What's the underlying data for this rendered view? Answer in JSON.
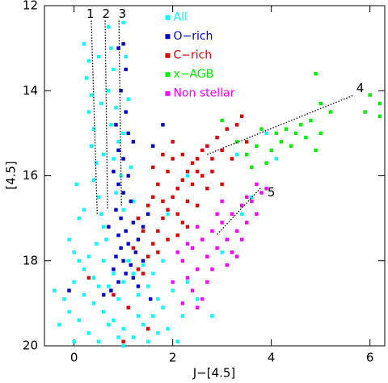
{
  "chart_data": {
    "type": "scatter",
    "xlabel": "J−[4.5]",
    "ylabel": "[4.5]",
    "xlim": [
      -0.6,
      6.3
    ],
    "ylim": [
      20,
      12
    ],
    "xticks": [
      0,
      2,
      4,
      6
    ],
    "yticks": [
      12,
      14,
      16,
      18,
      20
    ],
    "legend": "upper center",
    "series": [
      {
        "name": "All",
        "color": "#00ffff",
        "x": [
          0.2,
          0.3,
          0.25,
          0.35,
          0.3,
          0.4,
          0.35,
          0.45,
          0.4,
          0.5,
          0.55,
          0.6,
          0.7,
          0.75,
          0.8,
          0.7,
          0.85,
          0.75,
          0.9,
          0.8,
          0.95,
          0.85,
          1.0,
          0.65,
          1.0,
          1.05,
          1.1,
          1.0,
          1.15,
          1.2,
          0.5,
          0.55,
          0.6,
          0.2,
          0.1,
          0.45,
          0.3,
          1.3,
          0.0,
          0.2,
          0.4,
          0.6,
          0.8,
          1.0,
          1.2,
          1.4,
          1.6,
          1.8,
          0.1,
          0.3,
          0.5,
          0.7,
          0.9,
          1.1,
          1.3,
          1.5,
          1.7,
          1.9,
          2.0,
          0.2,
          0.4,
          0.6,
          0.8,
          1.0,
          1.2,
          1.4,
          1.6,
          0.0,
          0.9,
          1.5,
          -0.2,
          -0.4,
          -0.3,
          2.2,
          2.3,
          1.8,
          2.5,
          0.1,
          0.5,
          1.1,
          0.7,
          1.3,
          1.7,
          -0.1,
          2.1,
          1.0,
          0.05,
          -0.1,
          0.0,
          3.0,
          2.8,
          3.3,
          3.6,
          4.1,
          3.9,
          3.4,
          1.9,
          2.3
        ],
        "values": [
          12.9,
          13.3,
          13.7,
          14.1,
          14.5,
          14.9,
          15.3,
          15.7,
          16.1,
          16.5,
          16.9,
          17.2,
          12.5,
          13.0,
          13.5,
          14.0,
          14.4,
          14.8,
          15.2,
          15.6,
          16.0,
          16.4,
          16.8,
          17.5,
          12.4,
          13.2,
          14.2,
          15.0,
          15.8,
          16.6,
          13.2,
          14.3,
          15.5,
          16.8,
          17.0,
          17.6,
          17.9,
          17.0,
          18.5,
          18.8,
          19.0,
          19.2,
          19.4,
          19.6,
          19.8,
          19.5,
          19.3,
          19.1,
          19.4,
          19.7,
          19.9,
          18.6,
          18.9,
          19.1,
          18.8,
          18.6,
          18.9,
          19.6,
          18.7,
          18.2,
          18.4,
          18.0,
          18.3,
          18.5,
          18.3,
          18.1,
          18.3,
          19.9,
          19.8,
          19.9,
          18.9,
          18.7,
          19.5,
          19.3,
          18.5,
          18.0,
          18.9,
          18.0,
          18.6,
          18.0,
          19.5,
          19.3,
          19.7,
          19.2,
          19.9,
          20.0,
          16.2,
          17.5,
          17.8,
          17.8,
          19.3,
          15.5,
          16.5,
          15.6,
          15.0,
          16.9,
          16.9,
          16.0
        ]
      },
      {
        "name": "O−rich",
        "color": "#0000cc",
        "x": [
          0.9,
          1.0,
          1.05,
          0.95,
          1.05,
          0.85,
          1.1,
          0.9,
          1.0,
          0.8,
          1.1,
          0.9,
          1.0,
          1.15,
          0.85,
          0.95,
          1.2,
          1.05,
          0.9,
          1.3,
          1.1,
          0.95,
          1.25,
          0.85,
          1.0,
          1.15,
          0.8,
          1.05,
          0.9,
          1.2,
          0.75,
          1.4,
          1.5,
          1.6,
          1.8,
          1.2,
          0.6,
          1.3,
          0.7,
          1.4,
          -0.1,
          1.55
        ],
        "values": [
          13.0,
          12.9,
          13.5,
          14.0,
          14.5,
          14.8,
          15.0,
          15.4,
          15.6,
          15.9,
          16.0,
          16.2,
          16.4,
          16.6,
          16.8,
          17.0,
          17.1,
          17.3,
          17.4,
          17.5,
          17.6,
          17.7,
          17.8,
          17.9,
          18.0,
          18.1,
          18.2,
          18.3,
          18.5,
          18.4,
          18.7,
          17.2,
          16.9,
          15.3,
          14.8,
          15.2,
          18.8,
          18.6,
          17.2,
          18.0,
          18.7,
          18.9
        ]
      },
      {
        "name": "C−rich",
        "color": "#dd0000",
        "x": [
          1.4,
          1.5,
          1.6,
          1.7,
          1.8,
          1.9,
          2.0,
          2.1,
          2.2,
          2.3,
          2.4,
          2.5,
          2.6,
          2.7,
          1.6,
          1.7,
          1.8,
          1.9,
          2.0,
          2.1,
          2.2,
          2.3,
          2.4,
          2.5,
          2.6,
          2.8,
          2.9,
          3.0,
          3.1,
          3.3,
          3.5,
          3.4,
          2.0,
          1.5,
          1.3,
          1.2,
          1.7,
          1.9,
          2.1,
          2.3,
          2.5,
          2.7,
          2.8,
          3.0,
          1.4,
          1.6,
          1.8,
          0.3,
          0.8,
          1.1,
          1.5,
          1.0,
          1.3,
          2.2,
          3.2
        ],
        "values": [
          18.3,
          17.9,
          17.6,
          17.3,
          17.0,
          16.8,
          16.5,
          16.3,
          16.1,
          15.9,
          15.7,
          15.6,
          15.4,
          15.3,
          16.5,
          16.2,
          16.6,
          15.9,
          15.6,
          16.9,
          17.1,
          16.6,
          16.2,
          15.9,
          16.0,
          15.6,
          15.1,
          15.4,
          14.9,
          14.8,
          15.2,
          14.6,
          15.2,
          16.7,
          17.0,
          17.7,
          17.8,
          17.5,
          17.4,
          17.2,
          16.7,
          16.3,
          15.9,
          16.2,
          17.3,
          15.8,
          15.5,
          18.4,
          18.8,
          19.1,
          19.6,
          19.9,
          18.2,
          15.5,
          15.6
        ]
      },
      {
        "name": "x−AGB",
        "color": "#00ee00",
        "x": [
          3.3,
          3.5,
          3.6,
          3.7,
          3.8,
          3.9,
          4.0,
          4.1,
          4.2,
          4.3,
          4.4,
          4.5,
          4.7,
          4.8,
          4.9,
          5.0,
          5.0,
          5.2,
          4.9,
          5.9,
          6.0,
          6.2,
          6.2,
          3.0,
          4.6
        ],
        "values": [
          15.2,
          15.5,
          15.8,
          15.3,
          14.9,
          15.7,
          15.4,
          15.0,
          15.2,
          14.9,
          15.3,
          15.0,
          15.1,
          14.7,
          15.4,
          14.3,
          15.0,
          14.5,
          13.6,
          14.5,
          14.1,
          14.3,
          14.6,
          14.7,
          14.8
        ]
      },
      {
        "name": "Non stellar",
        "color": "#ff00ff",
        "x": [
          2.2,
          2.3,
          2.4,
          2.5,
          2.6,
          2.7,
          2.8,
          2.9,
          3.0,
          3.1,
          3.2,
          3.3,
          3.4,
          3.5,
          3.6,
          3.7,
          3.8,
          3.9,
          2.3,
          2.5,
          2.7,
          2.9,
          3.1,
          3.3,
          3.5,
          2.4,
          2.6,
          2.1,
          2.2,
          2.8,
          3.0,
          3.2,
          2.5,
          3.7,
          2.0,
          3.4
        ],
        "values": [
          18.0,
          18.4,
          17.7,
          18.2,
          17.5,
          17.9,
          17.3,
          17.7,
          17.1,
          17.5,
          16.9,
          17.3,
          16.7,
          17.1,
          16.6,
          16.9,
          16.4,
          16.3,
          17.6,
          17.2,
          18.5,
          16.9,
          18.1,
          17.9,
          16.5,
          18.7,
          18.9,
          17.8,
          19.0,
          18.2,
          16.6,
          17.8,
          19.1,
          16.2,
          18.5,
          17.5
        ]
      }
    ],
    "annotations": [
      {
        "label": "1",
        "x": 0.33,
        "y": 12.2,
        "line_x": [
          0.35,
          0.47
        ],
        "line_y": [
          12.35,
          16.9
        ]
      },
      {
        "label": "2",
        "x": 0.65,
        "y": 12.2,
        "line_x": [
          0.63,
          0.68
        ],
        "line_y": [
          12.35,
          16.8
        ]
      },
      {
        "label": "3",
        "x": 0.98,
        "y": 12.2,
        "line_x": [
          0.91,
          0.96
        ],
        "line_y": [
          12.35,
          16.7
        ]
      },
      {
        "label": "4",
        "x": 5.8,
        "y": 13.95,
        "line_x": [
          2.7,
          5.66
        ],
        "line_y": [
          15.5,
          14.11
        ]
      },
      {
        "label": "5",
        "x": 4.0,
        "y": 16.4,
        "line_x": [
          2.9,
          3.79
        ],
        "line_y": [
          17.38,
          16.28
        ]
      }
    ]
  }
}
